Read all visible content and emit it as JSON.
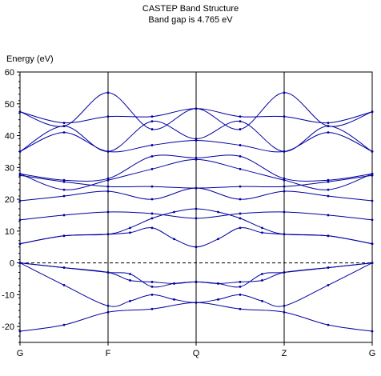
{
  "chart_data": {
    "type": "line",
    "title": "CASTEP Band Structure",
    "subtitle": "Band gap is 4.765 eV",
    "ylabel": "Energy (eV)",
    "xlabel": "",
    "ylim": [
      -25,
      60
    ],
    "yticks": [
      -20,
      -10,
      0,
      10,
      20,
      30,
      40,
      50,
      60
    ],
    "k_points": [
      "G",
      "F",
      "Q",
      "Z",
      "G"
    ],
    "k_positions": [
      0,
      1,
      2,
      3,
      4
    ],
    "fermi_level": 0,
    "grid": "vertical lines at high-symmetry points",
    "line_color": "#0000a0",
    "fermi_color": "#000000",
    "series": [
      {
        "x": [
          0,
          0.5,
          1,
          1.5,
          2,
          2.5,
          3,
          3.5,
          4
        ],
        "values": [
          -21.5,
          -19.5,
          -15.5,
          -14.5,
          -12.5,
          -14.5,
          -15.5,
          -19.5,
          -21.5
        ]
      },
      {
        "x": [
          0,
          0.5,
          1,
          1.25,
          1.5,
          1.75,
          2,
          2.25,
          2.5,
          2.75,
          3,
          3.5,
          4
        ],
        "values": [
          0,
          -7,
          -13.5,
          -12,
          -10,
          -11.5,
          -12.5,
          -11.5,
          -10,
          -12,
          -13.5,
          -7,
          0
        ]
      },
      {
        "x": [
          0,
          0.5,
          1,
          1.25,
          1.5,
          1.75,
          2,
          2.25,
          2.5,
          2.75,
          3,
          3.5,
          4
        ],
        "values": [
          0,
          -1.5,
          -3,
          -3.5,
          -7.5,
          -6.5,
          -6,
          -6.5,
          -7.5,
          -3.5,
          -3,
          -1.5,
          0
        ]
      },
      {
        "x": [
          0,
          0.5,
          1,
          1.25,
          1.5,
          1.75,
          2,
          2.25,
          2.5,
          2.75,
          3,
          3.5,
          4
        ],
        "values": [
          0,
          -1.5,
          -3,
          -5.5,
          -6,
          -6.5,
          -6,
          -6.5,
          -6,
          -5.5,
          -3,
          -1.5,
          0
        ]
      },
      {
        "x": [
          0,
          0.5,
          1,
          1.25,
          1.5,
          1.75,
          2,
          2.25,
          2.5,
          2.75,
          3,
          3.5,
          4
        ],
        "values": [
          6,
          8.5,
          9,
          9.5,
          11,
          7.5,
          5,
          7.5,
          11,
          9.5,
          9,
          8.5,
          6
        ]
      },
      {
        "x": [
          0,
          0.5,
          1,
          1.25,
          1.5,
          1.75,
          2,
          2.25,
          2.5,
          2.75,
          3,
          3.5,
          4
        ],
        "values": [
          6,
          8.5,
          9,
          11,
          14,
          16,
          17,
          16,
          14,
          11,
          9,
          8.5,
          6
        ]
      },
      {
        "x": [
          0,
          0.5,
          1,
          1.5,
          2,
          2.5,
          3,
          3.5,
          4
        ],
        "values": [
          13.5,
          15,
          16,
          15.5,
          14,
          15.5,
          16,
          15,
          13.5
        ]
      },
      {
        "x": [
          0,
          0.5,
          1,
          1.5,
          2,
          2.5,
          3,
          3.5,
          4
        ],
        "values": [
          19.5,
          21,
          22.5,
          20,
          23.5,
          20,
          22.5,
          21,
          19.5
        ]
      },
      {
        "x": [
          0,
          0.5,
          1,
          1.5,
          2,
          2.5,
          3,
          3.5,
          4
        ],
        "values": [
          27.5,
          25.5,
          24,
          24,
          23.5,
          24,
          24,
          25.5,
          27.5
        ]
      },
      {
        "x": [
          0,
          0.5,
          1,
          1.5,
          2,
          2.5,
          3,
          3.5,
          4
        ],
        "values": [
          28,
          23,
          26,
          29.5,
          32.5,
          29.5,
          26,
          23,
          28
        ]
      },
      {
        "x": [
          0,
          0.5,
          1,
          1.5,
          2,
          2.5,
          3,
          3.5,
          4
        ],
        "values": [
          28,
          26,
          26.5,
          33.5,
          33,
          33.5,
          26.5,
          26,
          28
        ]
      },
      {
        "x": [
          0,
          0.5,
          1,
          1.5,
          2,
          2.5,
          3,
          3.5,
          4
        ],
        "values": [
          35,
          41,
          35,
          37,
          38.5,
          37,
          35,
          41,
          35
        ]
      },
      {
        "x": [
          0,
          0.5,
          1,
          1.5,
          2,
          2.5,
          3,
          3.5,
          4
        ],
        "values": [
          47.5,
          43,
          53.5,
          42,
          48.5,
          42,
          53.5,
          43,
          47.5
        ]
      },
      {
        "x": [
          0,
          0.5,
          1,
          1.5,
          2,
          2.5,
          3,
          3.5,
          4
        ],
        "values": [
          47.5,
          44,
          46,
          46,
          48.5,
          46,
          46,
          44,
          47.5
        ]
      },
      {
        "x": [
          0,
          0.5,
          1,
          1.5,
          2,
          2.5,
          3,
          3.5,
          4
        ],
        "values": [
          35,
          43,
          35,
          44.5,
          39,
          44.5,
          35,
          43,
          35
        ]
      }
    ]
  }
}
